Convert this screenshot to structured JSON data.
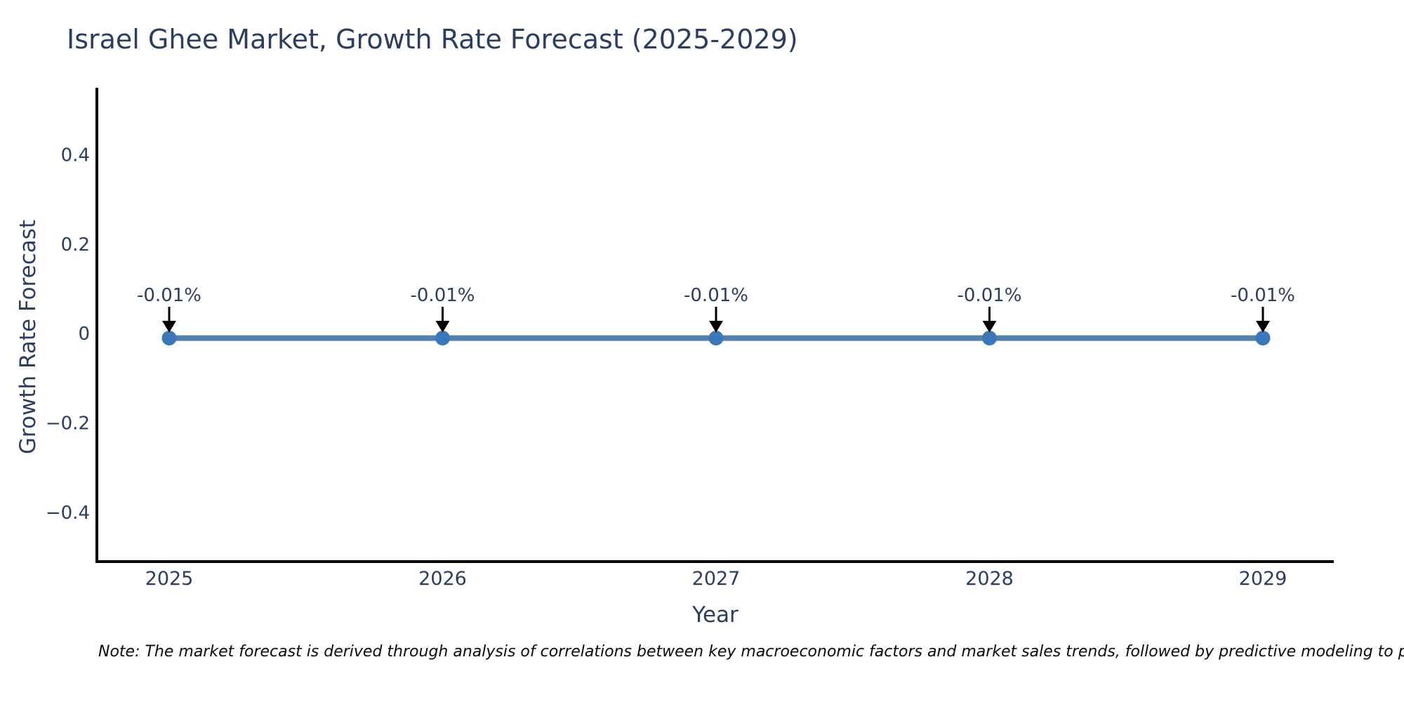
{
  "chart": {
    "title": "Israel Ghee Market, Growth Rate Forecast (2025-2029)",
    "xlabel": "Year",
    "ylabel": "Growth Rate Forecast"
  },
  "note": {
    "text": "Note: The market forecast is derived through analysis of correlations between key macroeconomic factors and market sales trends, followed by predictive modeling to project future sa"
  },
  "chart_data": {
    "type": "line",
    "title": "Israel Ghee Market, Growth Rate Forecast (2025-2029)",
    "xlabel": "Year",
    "ylabel": "Growth Rate Forecast",
    "x": [
      "2025",
      "2026",
      "2027",
      "2028",
      "2029"
    ],
    "y": [
      -0.01,
      -0.01,
      -0.01,
      -0.01,
      -0.01
    ],
    "point_labels": [
      "-0.01%",
      "-0.01%",
      "-0.01%",
      "-0.01%",
      "-0.01%"
    ],
    "ytick_values": [
      0.4,
      0.2,
      0,
      -0.2,
      -0.4
    ],
    "ytick_labels": [
      "0.4",
      "0.2",
      "0",
      "−0.2",
      "−0.4"
    ],
    "ylim": [
      -0.51,
      0.55
    ],
    "grid": false,
    "legend": "none",
    "colors": {
      "line": "#5182ab",
      "marker": "#3b78b8",
      "axis": "#000000",
      "tick_text": "#2a3f5f",
      "annotation_text": "#2a3f5f",
      "arrow": "#000000"
    }
  }
}
